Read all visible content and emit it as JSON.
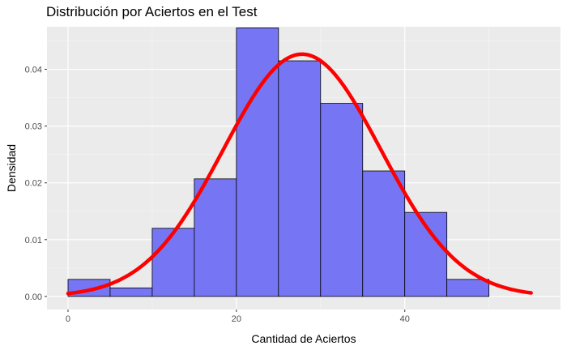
{
  "chart_data": {
    "type": "bar",
    "title": "Distribución por Aciertos en el Test",
    "xlabel": "Cantidad de Aciertos",
    "ylabel": "Densidad",
    "xlim": [
      -2.5,
      58.5
    ],
    "ylim": [
      -0.0023,
      0.0475
    ],
    "x_ticks": [
      0,
      20,
      40
    ],
    "y_ticks": [
      0.0,
      0.01,
      0.02,
      0.03,
      0.04
    ],
    "y_tick_labels": [
      "0.00",
      "0.01",
      "0.02",
      "0.03",
      "0.04"
    ],
    "bin_edges": [
      0,
      5,
      10,
      15,
      20,
      25,
      30,
      35,
      40,
      45,
      50
    ],
    "values": [
      0.003,
      0.0015,
      0.012,
      0.0207,
      0.0473,
      0.0415,
      0.034,
      0.0221,
      0.0148,
      0.003
    ],
    "bar_color": "#7676f5",
    "bar_border": "#000000",
    "density_curve": {
      "type": "line",
      "color": "#ff0000",
      "distribution": "normal",
      "mean": 27.8,
      "sd": 9.35,
      "x_range": [
        0,
        55
      ]
    },
    "panel_background": "#ebebeb",
    "grid": true,
    "legend": "none"
  }
}
